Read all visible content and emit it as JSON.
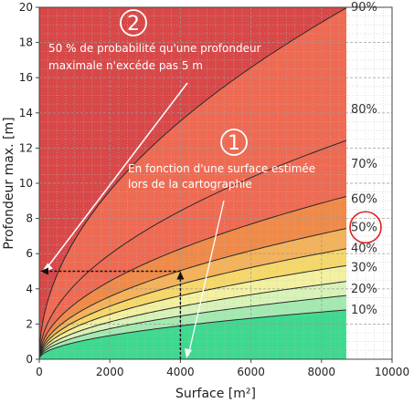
{
  "chart_data": {
    "type": "area",
    "title": "",
    "xlabel": "Surface [m²]",
    "ylabel": "Profondeur max. [m]",
    "xlim": [
      0,
      10000
    ],
    "ylim": [
      0,
      20
    ],
    "x_ticks": [
      "0",
      "2000",
      "4000",
      "6000",
      "8000",
      "10000"
    ],
    "y_ticks": [
      "0",
      "2",
      "4",
      "6",
      "8",
      "10",
      "12",
      "14",
      "16",
      "18",
      "20"
    ],
    "grid": true,
    "data_extent_x": 8700,
    "curve_model": "y = a * sqrt(x)",
    "series": [
      {
        "name": "10%",
        "values": [
          [
            0,
            0
          ],
          [
            1000,
            0.95
          ],
          [
            2000,
            1.34
          ],
          [
            4000,
            1.89
          ],
          [
            6000,
            2.32
          ],
          [
            8700,
            2.8
          ]
        ]
      },
      {
        "name": "20%",
        "values": [
          [
            0,
            0
          ],
          [
            1000,
            1.23
          ],
          [
            2000,
            1.74
          ],
          [
            4000,
            2.46
          ],
          [
            6000,
            3.01
          ],
          [
            8700,
            3.62
          ]
        ]
      },
      {
        "name": "30%",
        "values": [
          [
            0,
            0
          ],
          [
            1000,
            1.5
          ],
          [
            2000,
            2.12
          ],
          [
            4000,
            3.0
          ],
          [
            6000,
            3.67
          ],
          [
            8700,
            4.42
          ]
        ]
      },
      {
        "name": "40%",
        "values": [
          [
            0,
            0
          ],
          [
            1000,
            1.81
          ],
          [
            2000,
            2.55
          ],
          [
            4000,
            3.61
          ],
          [
            6000,
            4.42
          ],
          [
            8700,
            5.32
          ]
        ]
      },
      {
        "name": "50%",
        "values": [
          [
            0,
            0
          ],
          [
            1000,
            2.13
          ],
          [
            2000,
            3.01
          ],
          [
            4000,
            4.25
          ],
          [
            6000,
            5.21
          ],
          [
            8700,
            6.28
          ]
        ]
      },
      {
        "name": "60%",
        "values": [
          [
            0,
            0
          ],
          [
            1000,
            2.52
          ],
          [
            2000,
            3.56
          ],
          [
            4000,
            5.04
          ],
          [
            6000,
            6.17
          ],
          [
            8700,
            7.43
          ]
        ]
      },
      {
        "name": "70%",
        "values": [
          [
            0,
            0
          ],
          [
            1000,
            3.13
          ],
          [
            2000,
            4.43
          ],
          [
            4000,
            6.27
          ],
          [
            6000,
            7.68
          ],
          [
            8700,
            9.25
          ]
        ]
      },
      {
        "name": "80%",
        "values": [
          [
            0,
            0
          ],
          [
            1000,
            4.21
          ],
          [
            2000,
            5.96
          ],
          [
            4000,
            8.43
          ],
          [
            6000,
            10.32
          ],
          [
            8700,
            12.43
          ]
        ]
      },
      {
        "name": "90%",
        "values": [
          [
            0,
            0
          ],
          [
            1000,
            6.77
          ],
          [
            2000,
            9.57
          ],
          [
            4000,
            13.53
          ],
          [
            6000,
            16.58
          ],
          [
            8700,
            19.96
          ]
        ]
      }
    ],
    "highlighted_series": "50%",
    "annotations": [
      {
        "number": "2",
        "text_lines": [
          "50 % de probabilité qu'une profondeur",
          "maximale n'excéde pas 5 m"
        ]
      },
      {
        "number": "1",
        "text_lines": [
          "En fonction  d'une surface estimée",
          "lors de la cartographie"
        ]
      }
    ],
    "reference_point": {
      "x": 4000,
      "y": 5
    },
    "colors": {
      "band_10": "#3ed98f",
      "band_20": "#a4eab0",
      "band_30": "#d8f3b8",
      "band_40": "#f3f1a0",
      "band_50": "#f6d86a",
      "band_60": "#f4b25a",
      "band_70": "#f08a48",
      "band_80": "#ef6a52",
      "band_90": "#d84848",
      "highlight_circle": "#e02020"
    }
  }
}
